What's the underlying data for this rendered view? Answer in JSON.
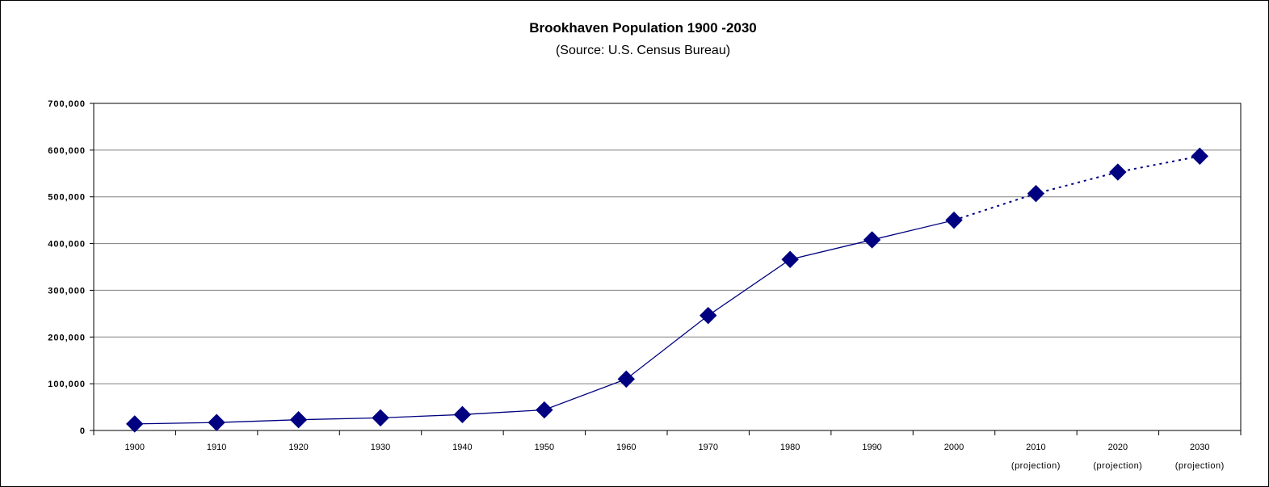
{
  "chart_data": {
    "type": "line",
    "title": "Brookhaven Population 1900 -2030",
    "subtitle": "(Source: U.S. Census Bureau)",
    "xlabel": "",
    "ylabel": "",
    "categories": [
      "1900",
      "1910",
      "1920",
      "1930",
      "1940",
      "1950",
      "1960",
      "1970",
      "1980",
      "1990",
      "2000",
      "2010",
      "2020",
      "2030"
    ],
    "category_notes": [
      "",
      "",
      "",
      "",
      "",
      "",
      "",
      "",
      "",
      "",
      "",
      "(projection)",
      "(projection)",
      "(projection)"
    ],
    "series": [
      {
        "values": [
          14000,
          17000,
          23000,
          27000,
          34000,
          44000,
          110000,
          246000,
          366000,
          408000,
          450000,
          507000,
          553000,
          587000
        ],
        "color": "#000080",
        "marker": "diamond",
        "projection_start_index": 10
      }
    ],
    "yticks": [
      0,
      100000,
      200000,
      300000,
      400000,
      500000,
      600000,
      700000
    ],
    "ytick_labels": [
      "0",
      "100,000",
      "200,000",
      "300,000",
      "400,000",
      "500,000",
      "600,000",
      "700,000"
    ],
    "ylim": [
      0,
      700000
    ],
    "grid": true,
    "legend": "none",
    "gridline_color": "#808080",
    "axis_color": "#000000"
  }
}
